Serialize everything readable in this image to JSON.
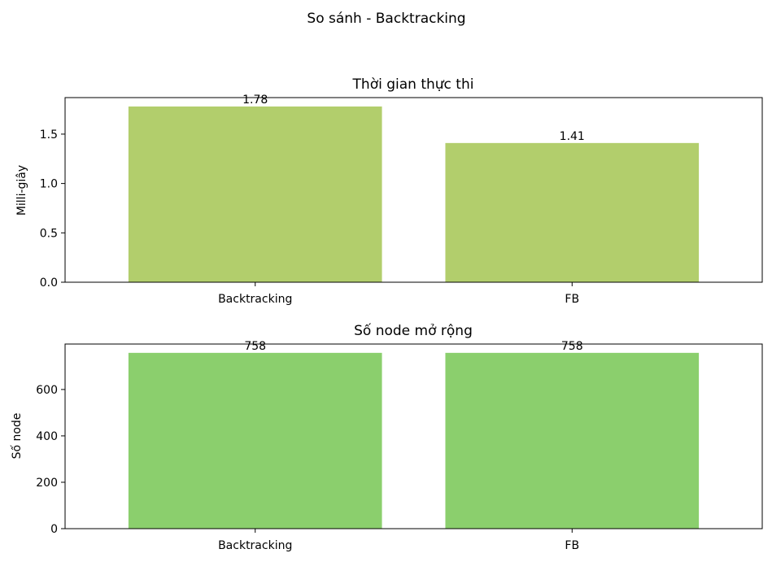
{
  "figure": {
    "suptitle": "So sánh - Backtracking"
  },
  "chart_data": [
    {
      "type": "bar",
      "title": "Thời gian thực thi",
      "xlabel": "",
      "ylabel": "Milli-giây",
      "categories": [
        "Backtracking",
        "FB"
      ],
      "values": [
        1.78,
        1.41
      ],
      "value_labels": [
        "1.78",
        "1.41"
      ],
      "ylim": [
        0,
        1.87
      ],
      "yticks": [
        0.0,
        0.5,
        1.0,
        1.5
      ],
      "ytick_labels": [
        "0.0",
        "0.5",
        "1.0",
        "1.5"
      ],
      "bar_color": "#b2ce6c",
      "grid": false,
      "legend": "none"
    },
    {
      "type": "bar",
      "title": "Số node mở rộng",
      "xlabel": "",
      "ylabel": "Số node",
      "categories": [
        "Backtracking",
        "FB"
      ],
      "values": [
        758,
        758
      ],
      "value_labels": [
        "758",
        "758"
      ],
      "ylim": [
        0,
        796
      ],
      "yticks": [
        0,
        200,
        400,
        600
      ],
      "ytick_labels": [
        "0",
        "200",
        "400",
        "600"
      ],
      "bar_color": "#8bcf6d",
      "grid": false,
      "legend": "none"
    }
  ]
}
